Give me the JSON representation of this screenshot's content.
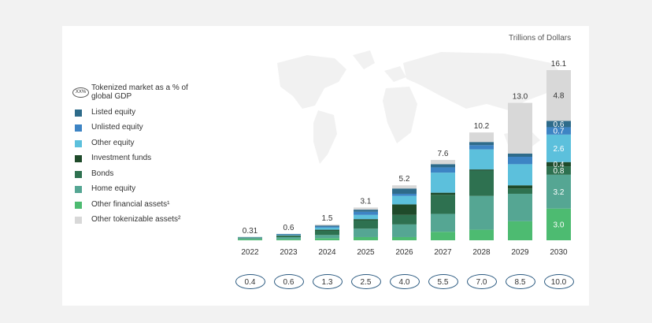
{
  "unit_label": "Trillions of Dollars",
  "legend": {
    "gdp_icon_text": "XX%",
    "gdp_caption": "Tokenized market as a % of global GDP",
    "items": [
      {
        "label": "Listed equity",
        "color": "#2e6b8a"
      },
      {
        "label": "Unlisted equity",
        "color": "#3d84c4"
      },
      {
        "label": "Other equity",
        "color": "#5cc0dc"
      },
      {
        "label": "Investment funds",
        "color": "#1f4a2a"
      },
      {
        "label": "Bonds",
        "color": "#2e7150"
      },
      {
        "label": "Home equity",
        "color": "#55a693"
      },
      {
        "label": "Other financial assets¹",
        "color": "#4dbb71"
      },
      {
        "label": "Other tokenizable assets²",
        "color": "#d8d8d8"
      }
    ]
  },
  "chart_data": {
    "type": "bar",
    "stacked": true,
    "categories": [
      "2022",
      "2023",
      "2024",
      "2025",
      "2026",
      "2027",
      "2028",
      "2029",
      "2030"
    ],
    "totals": [
      0.31,
      0.6,
      1.5,
      3.1,
      5.2,
      7.6,
      10.2,
      13.0,
      16.1
    ],
    "total_labels": [
      "0.31",
      "0.6",
      "1.5",
      "3.1",
      "5.2",
      "7.6",
      "10.2",
      "13.0",
      "16.1"
    ],
    "gdp_percent": [
      "0.4",
      "0.6",
      "1.3",
      "2.5",
      "4.0",
      "5.5",
      "7.0",
      "8.5",
      "10.0"
    ],
    "ylabel": "Trillions of Dollars",
    "ylim": [
      0,
      16.1
    ],
    "series": [
      {
        "name": "Other financial assets¹",
        "color": "#4dbb71",
        "values": [
          0.1,
          0.1,
          0.2,
          0.3,
          0.3,
          0.8,
          1.0,
          1.8,
          3.0
        ],
        "labels": [
          "",
          "",
          "",
          "",
          "",
          "",
          "",
          "",
          "3.0"
        ]
      },
      {
        "name": "Home equity",
        "color": "#55a693",
        "values": [
          0.1,
          0.2,
          0.3,
          0.8,
          1.2,
          1.7,
          3.2,
          2.6,
          3.2
        ],
        "labels": [
          "",
          "",
          "",
          "",
          "",
          "",
          "",
          "",
          "3.2"
        ]
      },
      {
        "name": "Bonds",
        "color": "#2e7150",
        "values": [
          0.05,
          0.1,
          0.4,
          0.8,
          0.9,
          1.8,
          2.4,
          0.5,
          0.8
        ],
        "labels": [
          "",
          "",
          "",
          "",
          "",
          "",
          "",
          "",
          "0.8"
        ]
      },
      {
        "name": "Investment funds",
        "color": "#1f4a2a",
        "values": [
          0.01,
          0.05,
          0.1,
          0.1,
          1.0,
          0.2,
          0.1,
          0.3,
          0.4
        ],
        "labels": [
          "",
          "",
          "",
          "",
          "",
          "",
          "",
          "",
          "0.4"
        ]
      },
      {
        "name": "Other equity",
        "color": "#5cc0dc",
        "values": [
          0.03,
          0.05,
          0.2,
          0.4,
          0.8,
          1.9,
          1.9,
          2.0,
          2.6
        ],
        "labels": [
          "",
          "",
          "",
          "",
          "",
          "",
          "",
          "",
          "2.6"
        ]
      },
      {
        "name": "Unlisted equity",
        "color": "#3d84c4",
        "values": [
          0.01,
          0.05,
          0.1,
          0.3,
          0.2,
          0.5,
          0.4,
          0.7,
          0.7
        ],
        "labels": [
          "",
          "",
          "",
          "",
          "",
          "",
          "",
          "",
          "0.7"
        ]
      },
      {
        "name": "Listed equity",
        "color": "#2e6b8a",
        "values": [
          0.01,
          0.05,
          0.1,
          0.2,
          0.5,
          0.3,
          0.3,
          0.3,
          0.6
        ],
        "labels": [
          "",
          "",
          "",
          "",
          "",
          "",
          "",
          "",
          "0.6"
        ]
      },
      {
        "name": "Other tokenizable assets²",
        "color": "#d8d8d8",
        "values": [
          0.0,
          0.0,
          0.1,
          0.2,
          0.3,
          0.4,
          0.9,
          4.8,
          4.8
        ],
        "labels": [
          "",
          "",
          "",
          "",
          "",
          "",
          "",
          "",
          "4.8"
        ]
      }
    ]
  }
}
